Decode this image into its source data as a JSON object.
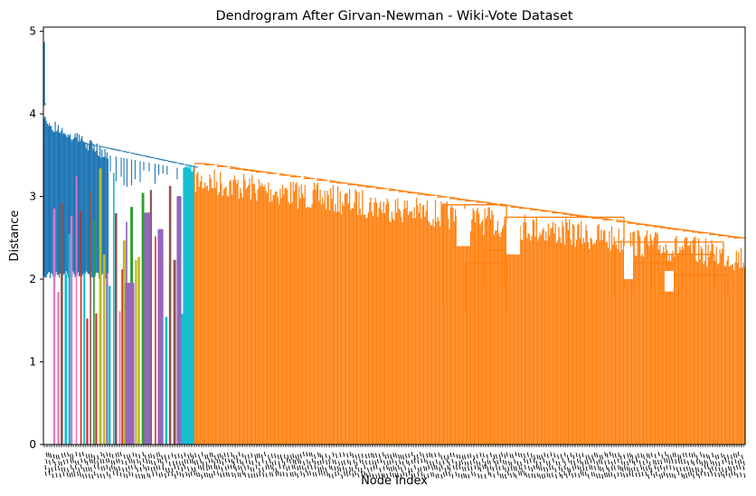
{
  "chart_data": {
    "type": "dendrogram",
    "title": "Dendrogram After Girvan-Newman - Wiki-Vote Dataset",
    "xlabel": "Node Index",
    "ylabel": "Distance",
    "ylim": [
      0,
      5.05
    ],
    "yticks": [
      0,
      1,
      2,
      3,
      4,
      5
    ],
    "grid": false,
    "legend": "none",
    "colors": {
      "main": "#ff7f0e",
      "above_threshold": "#1f77b4",
      "small_clusters": [
        "#17becf",
        "#bcbd22",
        "#d62728",
        "#9467bd",
        "#2ca02c",
        "#8c564b",
        "#e377c2"
      ]
    },
    "top_merge_distance": 4.87,
    "main_cluster_top": 3.4,
    "main_cluster_range": [
      3.4,
      2.45
    ],
    "dense_tick_labels": true
  }
}
